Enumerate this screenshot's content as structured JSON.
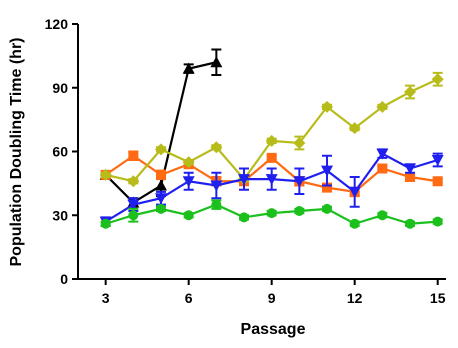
{
  "chart_data": {
    "type": "line",
    "title": "",
    "xlabel": "Passage",
    "ylabel": "Population Doubling Time (hr)",
    "xlim": [
      2,
      15.3
    ],
    "ylim": [
      0,
      120
    ],
    "xticks": [
      3,
      6,
      9,
      12,
      15
    ],
    "yticks": [
      0,
      30,
      60,
      90,
      120
    ],
    "grid": false,
    "legend": "none",
    "series": [
      {
        "color": "#000000",
        "marker": "triangle-up",
        "x": [
          3,
          4,
          5,
          6,
          7
        ],
        "y": [
          49,
          36,
          44,
          99,
          102
        ],
        "err": [
          0,
          2,
          5,
          2,
          6
        ]
      },
      {
        "color": "#ff6a13",
        "marker": "square",
        "x": [
          3,
          4,
          5,
          6,
          7,
          8,
          9,
          10,
          11,
          12,
          13,
          14,
          15
        ],
        "y": [
          49,
          58,
          49,
          54,
          46,
          46,
          57,
          46,
          43,
          41,
          52,
          48,
          46
        ],
        "err": [
          1,
          2,
          2,
          1,
          2,
          1,
          1,
          2,
          1,
          2,
          1,
          1,
          1
        ]
      },
      {
        "color": "#b8bc1a",
        "marker": "diamond",
        "x": [
          3,
          4,
          5,
          6,
          7,
          8,
          9,
          10,
          11,
          12,
          13,
          14,
          15
        ],
        "y": [
          49,
          46,
          61,
          55,
          62,
          47,
          65,
          64,
          81,
          71,
          81,
          88,
          94
        ],
        "err": [
          1,
          1,
          1,
          1,
          1,
          1,
          1,
          3,
          1,
          1,
          1,
          3,
          3
        ]
      },
      {
        "color": "#1f1ff0",
        "marker": "triangle-down",
        "x": [
          3,
          4,
          5,
          6,
          7,
          8,
          9,
          10,
          11,
          12,
          13,
          14,
          15
        ],
        "y": [
          27,
          35,
          38,
          46,
          44,
          47,
          47,
          46,
          51,
          41,
          59,
          52,
          56
        ],
        "err": [
          2,
          3,
          3,
          4,
          6,
          5,
          5,
          6,
          7,
          7,
          2,
          2,
          3
        ]
      },
      {
        "color": "#1cc01c",
        "marker": "circle",
        "x": [
          3,
          4,
          5,
          6,
          7,
          8,
          9,
          10,
          11,
          12,
          13,
          14,
          15
        ],
        "y": [
          26,
          30,
          33,
          30,
          35,
          29,
          31,
          32,
          33,
          26,
          30,
          26,
          27
        ],
        "err": [
          1,
          3,
          1,
          1,
          2,
          1,
          1,
          1,
          1,
          1,
          1,
          1,
          1
        ]
      }
    ]
  }
}
